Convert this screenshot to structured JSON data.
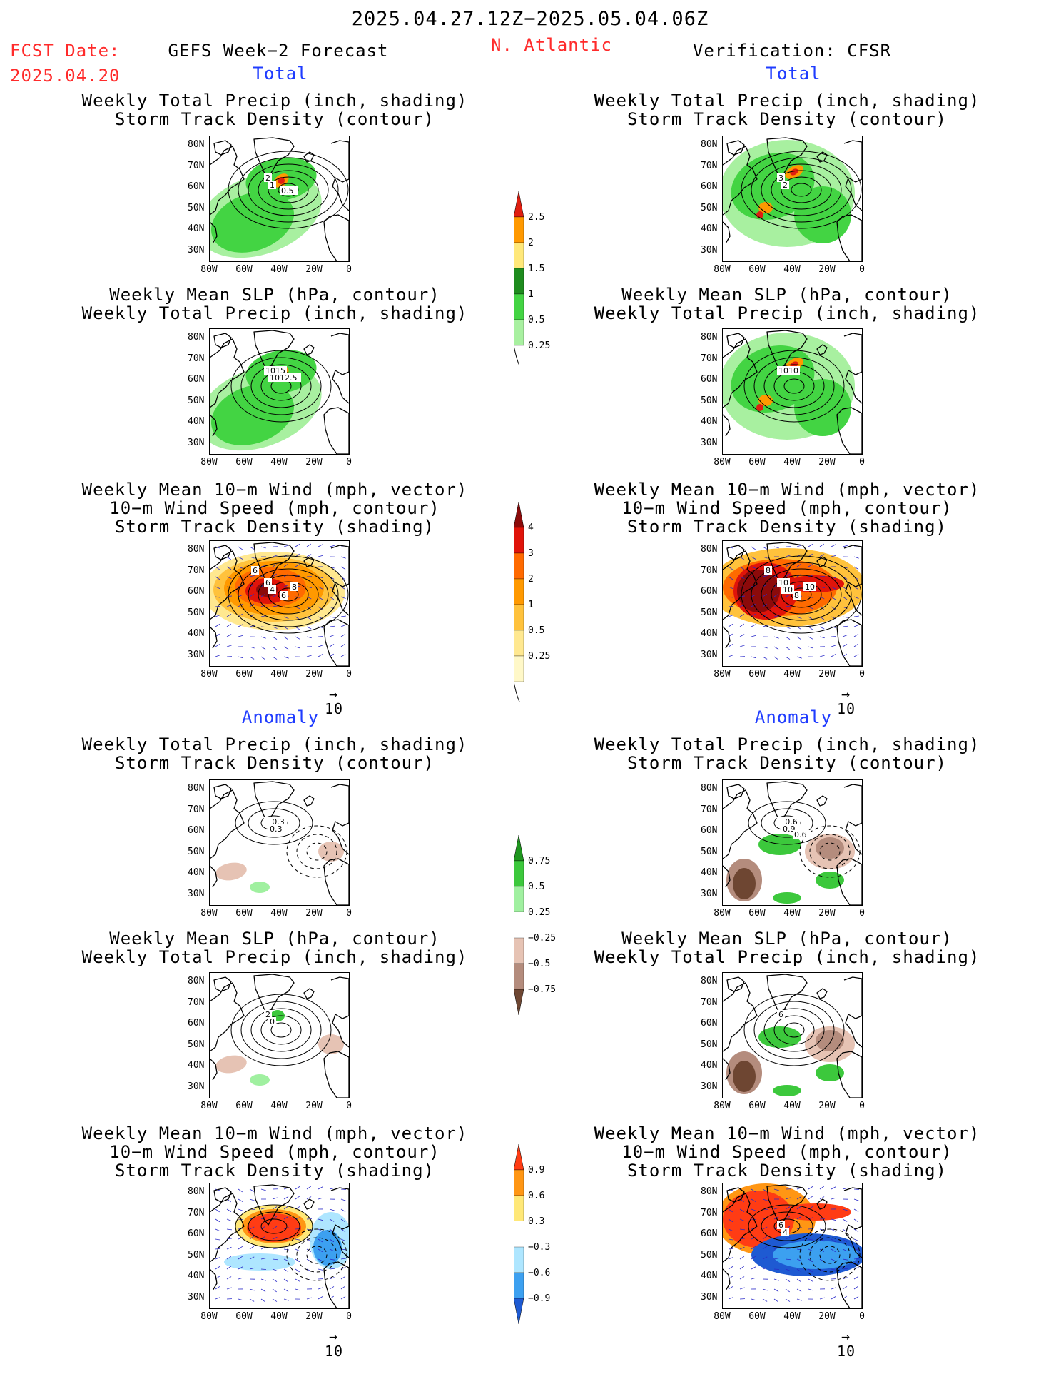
{
  "header": {
    "date_range": "2025.04.27.12Z−2025.05.04.06Z",
    "fcst_label": "FCST Date:",
    "fcst_date": "2025.04.20",
    "left_title": "GEFS Week−2 Forecast",
    "region": "N. Atlantic",
    "right_title": "Verification: CFSR"
  },
  "section_labels": {
    "total": "Total",
    "anomaly": "Anomaly"
  },
  "panel_titles": {
    "precip_track": [
      "Weekly Total Precip (inch, shading)",
      "Storm Track Density (contour)"
    ],
    "slp_precip": [
      "Weekly Mean SLP (hPa, contour)",
      "Weekly Total Precip (inch, shading)"
    ],
    "wind": [
      "Weekly Mean 10−m Wind (mph, vector)",
      "10−m Wind Speed (mph, contour)",
      "Storm Track Density (shading)"
    ]
  },
  "axes": {
    "lat_ticks": [
      "80N",
      "70N",
      "60N",
      "50N",
      "40N",
      "30N"
    ],
    "lon_ticks": [
      "80W",
      "60W",
      "40W",
      "20W",
      "0"
    ]
  },
  "vector_reference": "10",
  "colorbars": {
    "precip_total": {
      "labels": [
        "2.5",
        "2",
        "1.5",
        "1",
        "0.5",
        "0.25"
      ],
      "colors": [
        "#e01e10",
        "#ff9900",
        "#ffe87a",
        "#1e8c1e",
        "#43d443",
        "#a8f0a0"
      ]
    },
    "track_total": {
      "labels": [
        "4",
        "3",
        "2",
        "1",
        "0.5",
        "0.25"
      ],
      "colors": [
        "#8c0a0a",
        "#e0140a",
        "#ff6a00",
        "#ff9900",
        "#ffc23c",
        "#ffe890",
        "#fff8c8"
      ]
    },
    "precip_anom": {
      "labels": [
        "0.75",
        "0.5",
        "0.25",
        "−0.25",
        "−0.5",
        "−0.75"
      ],
      "colors": [
        "#1e961e",
        "#3cc83c",
        "#a0f0a0",
        "#ffffff",
        "#e6c3b4",
        "#b48c7d",
        "#6e4632"
      ]
    },
    "track_anom": {
      "labels": [
        "0.9",
        "0.6",
        "0.3",
        "−0.3",
        "−0.6",
        "−0.9"
      ],
      "colors": [
        "#ff3c14",
        "#ff9614",
        "#ffe878",
        "#ffffff",
        "#aee6ff",
        "#3ca0f0",
        "#1e5ad2"
      ]
    }
  },
  "contour_labels": {
    "p1_left": [
      "2",
      "1",
      "0.5"
    ],
    "p1_right": [
      "3",
      "2"
    ],
    "p2_left": [
      "1015",
      "1012.5"
    ],
    "p2_right": [
      "1010"
    ],
    "p3_left": [
      "6",
      "4",
      "6",
      "8",
      "6"
    ],
    "p3_right": [
      "10",
      "10",
      "8",
      "10",
      "8"
    ],
    "p4_left": [
      "−0.3",
      "0.3"
    ],
    "p4_right": [
      "−0.6",
      "0.9",
      "0.6"
    ],
    "p5_left": [
      "2",
      "0"
    ],
    "p5_right": [
      "6"
    ],
    "p6_left": [],
    "p6_right": [
      "6",
      "4"
    ]
  }
}
